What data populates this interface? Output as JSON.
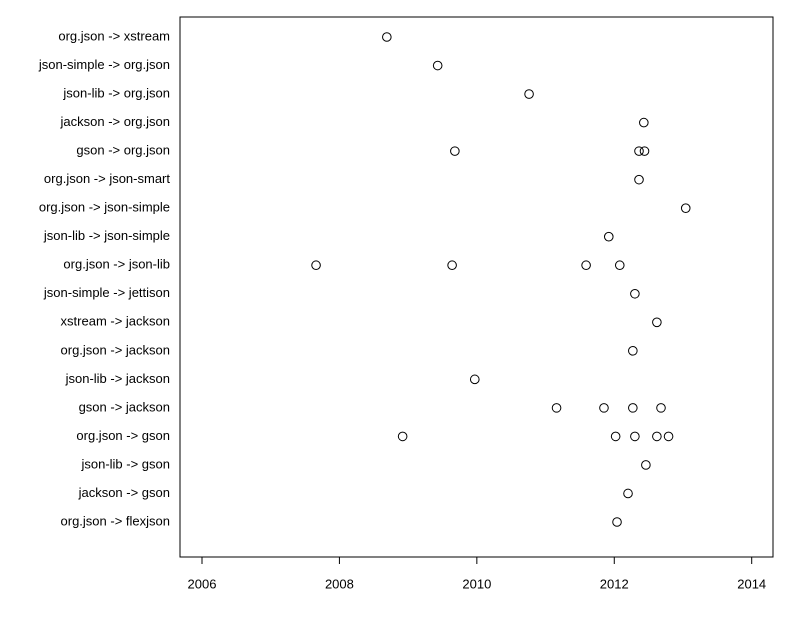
{
  "chart_data": {
    "type": "dot",
    "categories": [
      "org.json -> xstream",
      "json-simple -> org.json",
      "json-lib -> org.json",
      "jackson -> org.json",
      "gson -> org.json",
      "org.json -> json-smart",
      "org.json -> json-simple",
      "json-lib -> json-simple",
      "org.json -> json-lib",
      "json-simple -> jettison",
      "xstream -> jackson",
      "org.json -> jackson",
      "json-lib -> jackson",
      "gson -> jackson",
      "org.json -> gson",
      "json-lib -> gson",
      "jackson -> gson",
      "org.json -> flexjson"
    ],
    "values": [
      [
        2008.69
      ],
      [
        2009.43
      ],
      [
        2010.76
      ],
      [
        2012.43
      ],
      [
        2009.68,
        2012.36,
        2012.44
      ],
      [
        2012.36
      ],
      [
        2013.04
      ],
      [
        2011.92
      ],
      [
        2007.66,
        2009.64,
        2011.59,
        2012.08
      ],
      [
        2012.3
      ],
      [
        2012.62
      ],
      [
        2012.27
      ],
      [
        2009.97
      ],
      [
        2011.16,
        2011.85,
        2012.27,
        2012.68
      ],
      [
        2008.92,
        2012.02,
        2012.3,
        2012.62,
        2012.79
      ],
      [
        2012.46
      ],
      [
        2012.2
      ],
      [
        2012.04
      ]
    ],
    "color": "#000000",
    "xlim": [
      2005.68,
      2014.31
    ],
    "xticks": [
      2006,
      2008,
      2010,
      2012,
      2014
    ]
  }
}
